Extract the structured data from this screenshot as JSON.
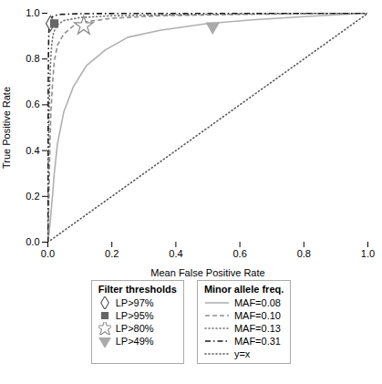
{
  "chart_data": {
    "type": "line",
    "xlabel": "Mean False Positive Rate",
    "ylabel": "True Positive Rate",
    "xlim": [
      0.0,
      1.0
    ],
    "ylim": [
      0.0,
      1.0
    ],
    "xticks": [
      {
        "value": 0.0,
        "label": "0.0"
      },
      0.2,
      0.4,
      0.6,
      0.8,
      {
        "value": 1.0,
        "label": "1.0"
      }
    ],
    "yticks": [
      {
        "value": 0.0,
        "label": "0.0"
      },
      0.2,
      0.4,
      0.6,
      0.8,
      {
        "value": 1.0,
        "label": "1.0"
      }
    ],
    "grid": false,
    "series": [
      {
        "name": "MAF=0.08",
        "group": "Minor allele freq.",
        "type": "line",
        "color": "#b0b0b0",
        "line_style": "solid",
        "x": [
          0,
          0.003,
          0.006,
          0.01,
          0.015,
          0.02,
          0.03,
          0.05,
          0.08,
          0.12,
          0.18,
          0.25,
          0.35,
          0.5,
          0.65,
          0.8,
          0.9,
          1.0
        ],
        "values": [
          0,
          0.03,
          0.07,
          0.13,
          0.21,
          0.3,
          0.43,
          0.57,
          0.68,
          0.77,
          0.84,
          0.895,
          0.925,
          0.955,
          0.972,
          0.985,
          0.993,
          1.0
        ]
      },
      {
        "name": "MAF=0.10",
        "group": "Minor allele freq.",
        "type": "line",
        "color": "#909090",
        "line_style": "dashed",
        "x": [
          0,
          0.002,
          0.004,
          0.007,
          0.01,
          0.015,
          0.02,
          0.03,
          0.05,
          0.08,
          0.12,
          0.2,
          0.35,
          0.6,
          0.85,
          1.0
        ],
        "values": [
          0,
          0.1,
          0.25,
          0.45,
          0.58,
          0.7,
          0.79,
          0.86,
          0.91,
          0.945,
          0.963,
          0.978,
          0.989,
          0.995,
          0.999,
          1.0
        ]
      },
      {
        "name": "MAF=0.13",
        "group": "Minor allele freq.",
        "type": "line",
        "color": "#707070",
        "line_style": "dotted",
        "x": [
          0,
          0.001,
          0.002,
          0.004,
          0.006,
          0.009,
          0.012,
          0.016,
          0.022,
          0.03,
          0.05,
          0.1,
          0.2,
          0.4,
          0.7,
          1.0
        ],
        "values": [
          0,
          0.18,
          0.38,
          0.58,
          0.7,
          0.8,
          0.86,
          0.905,
          0.93,
          0.95,
          0.968,
          0.981,
          0.989,
          0.994,
          0.998,
          1.0
        ]
      },
      {
        "name": "MAF=0.31",
        "group": "Minor allele freq.",
        "type": "line",
        "color": "#1a1a1a",
        "line_style": "dashdot",
        "x": [
          0,
          0.0005,
          0.001,
          0.0015,
          0.002,
          0.003,
          0.004,
          0.006,
          0.009,
          0.013,
          0.02,
          0.04,
          0.1,
          0.3,
          0.7,
          1.0
        ],
        "values": [
          0,
          0.4,
          0.62,
          0.75,
          0.84,
          0.91,
          0.94,
          0.963,
          0.975,
          0.983,
          0.99,
          0.995,
          0.998,
          0.9995,
          1.0,
          1.0
        ]
      },
      {
        "name": "y=x",
        "group": "Minor allele freq.",
        "type": "line",
        "color": "#555555",
        "line_style": "dotted",
        "x": [
          0,
          1
        ],
        "values": [
          0,
          1
        ]
      },
      {
        "name": "LP>97%",
        "group": "Filter thresholds",
        "type": "scatter",
        "color": "#555555",
        "marker": "open_diamond",
        "x": [
          0.008
        ],
        "values": [
          0.955
        ]
      },
      {
        "name": "LP>95%",
        "group": "Filter thresholds",
        "type": "scatter",
        "color": "#666666",
        "marker": "square",
        "x": [
          0.02
        ],
        "values": [
          0.955
        ]
      },
      {
        "name": "LP>80%",
        "group": "Filter thresholds",
        "type": "scatter",
        "color": "#888888",
        "marker": "open_star",
        "x": [
          0.112
        ],
        "values": [
          0.945
        ]
      },
      {
        "name": "LP>49%",
        "group": "Filter thresholds",
        "type": "scatter",
        "color": "#aaaaaa",
        "marker": "triangle_down",
        "x": [
          0.515
        ],
        "values": [
          0.942
        ]
      }
    ]
  }
}
